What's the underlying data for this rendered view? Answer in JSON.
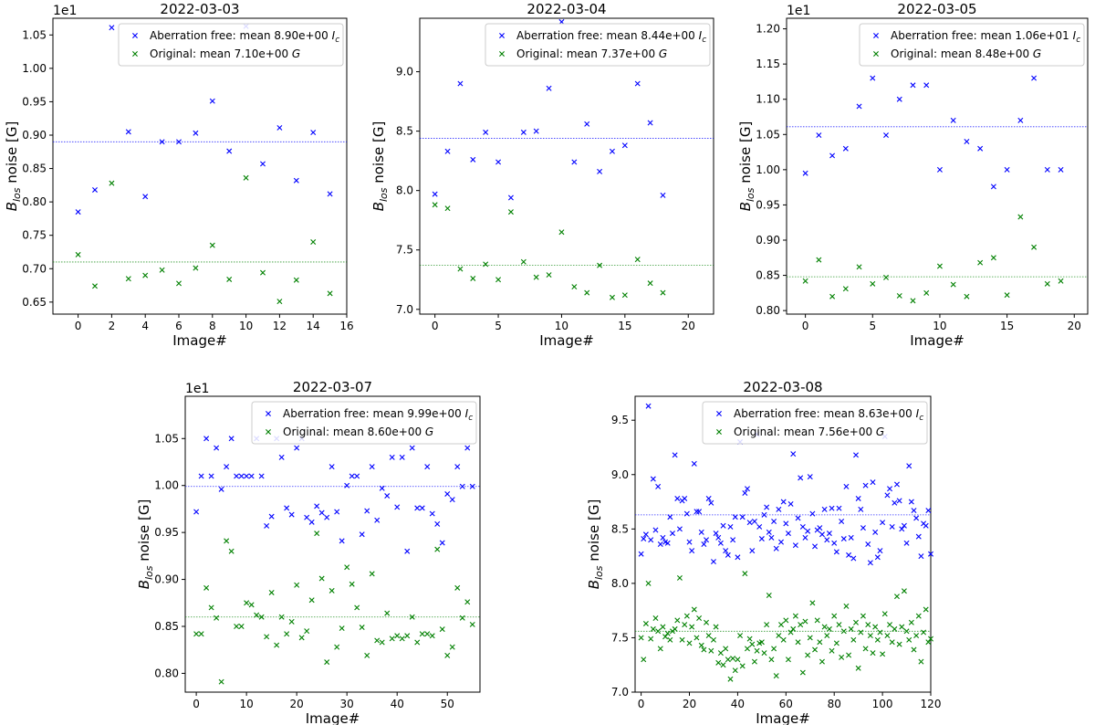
{
  "figure": {
    "charts": [
      {
        "type": "scatter",
        "title": "2022-03-03",
        "xlabel": "Image#",
        "ylabel_main": "B",
        "ylabel_sub": "los",
        "ylabel_rest": " noise [G]",
        "offset_label": "1e1",
        "xlim": [
          -1.5,
          16
        ],
        "ylim": [
          0.632,
          1.075
        ],
        "xticks": [
          0,
          2,
          4,
          6,
          8,
          10,
          12,
          14,
          16
        ],
        "yticks": [
          0.65,
          0.7,
          0.75,
          0.8,
          0.85,
          0.9,
          0.95,
          1.0,
          1.05
        ],
        "ytick_labels": [
          "0.65",
          "0.70",
          "0.75",
          "0.80",
          "0.85",
          "0.90",
          "0.95",
          "1.00",
          "1.05"
        ],
        "legend_position": "top-right",
        "series": [
          {
            "name": "Aberration free: mean 8.90e+00 Ic",
            "legend_text": "Aberration free: mean 8.90e+00",
            "legend_unit": "I",
            "legend_unit_sub": "c",
            "color": "#0000ff",
            "mean": 0.89,
            "y": [
              0.785,
              0.818,
              1.061,
              0.905,
              0.808,
              0.89,
              0.89,
              0.903,
              0.951,
              0.876,
              1.063,
              0.857,
              0.911,
              0.832,
              0.904,
              0.812
            ]
          },
          {
            "name": "Original: mean 7.10e+00 G",
            "legend_text": "Original: mean 7.10e+00",
            "legend_unit": "G",
            "legend_unit_sub": "",
            "color": "#008000",
            "mean": 0.71,
            "y": [
              0.721,
              0.674,
              0.828,
              0.685,
              0.69,
              0.698,
              0.678,
              0.701,
              0.735,
              0.684,
              0.836,
              0.694,
              0.651,
              0.683,
              0.74,
              0.663
            ]
          }
        ]
      },
      {
        "type": "scatter",
        "title": "2022-03-04",
        "xlabel": "Image#",
        "ylabel_main": "B",
        "ylabel_sub": "los",
        "ylabel_rest": " noise [G]",
        "offset_label": "",
        "xlim": [
          -1.2,
          22
        ],
        "ylim": [
          6.96,
          9.45
        ],
        "xticks": [
          0,
          5,
          10,
          15,
          20
        ],
        "yticks": [
          7.0,
          7.5,
          8.0,
          8.5,
          9.0
        ],
        "ytick_labels": [
          "7.0",
          "7.5",
          "8.0",
          "8.5",
          "9.0"
        ],
        "legend_position": "top-right",
        "series": [
          {
            "name": "Aberration free: mean 8.44e+00 Ic",
            "legend_text": "Aberration free: mean 8.44e+00",
            "legend_unit": "I",
            "legend_unit_sub": "c",
            "color": "#0000ff",
            "mean": 8.44,
            "y": [
              7.97,
              8.33,
              8.9,
              8.26,
              8.49,
              8.24,
              7.94,
              8.49,
              8.5,
              8.86,
              9.42,
              8.24,
              8.56,
              8.16,
              8.33,
              8.38,
              8.9,
              8.57,
              7.96
            ]
          },
          {
            "name": "Original: mean 7.37e+00 G",
            "legend_text": "Original: mean 7.37e+00",
            "legend_unit": "G",
            "legend_unit_sub": "",
            "color": "#008000",
            "mean": 7.37,
            "y": [
              7.88,
              7.85,
              7.34,
              7.26,
              7.38,
              7.25,
              7.82,
              7.4,
              7.27,
              7.29,
              7.65,
              7.19,
              7.14,
              7.37,
              7.1,
              7.12,
              7.42,
              7.22,
              7.14
            ]
          }
        ]
      },
      {
        "type": "scatter",
        "title": "2022-03-05",
        "xlabel": "Image#",
        "ylabel_main": "B",
        "ylabel_sub": "los",
        "ylabel_rest": " noise [G]",
        "offset_label": "1e1",
        "xlim": [
          -1.4,
          21
        ],
        "ylim": [
          0.795,
          1.215
        ],
        "xticks": [
          0,
          5,
          10,
          15,
          20
        ],
        "yticks": [
          0.8,
          0.85,
          0.9,
          0.95,
          1.0,
          1.05,
          1.1,
          1.15,
          1.2
        ],
        "ytick_labels": [
          "0.80",
          "0.85",
          "0.90",
          "0.95",
          "1.00",
          "1.05",
          "1.10",
          "1.15",
          "1.20"
        ],
        "legend_position": "top-right",
        "series": [
          {
            "name": "Aberration free: mean 1.06e+01 Ic",
            "legend_text": "Aberration free: mean 1.06e+01",
            "legend_unit": "I",
            "legend_unit_sub": "c",
            "color": "#0000ff",
            "mean": 1.061,
            "y": [
              0.995,
              1.049,
              1.02,
              1.03,
              1.09,
              1.13,
              1.049,
              1.1,
              1.12,
              1.12,
              1.0,
              1.07,
              1.04,
              1.03,
              0.976,
              1.0,
              1.07,
              1.13,
              1.0,
              1.0
            ]
          },
          {
            "name": "Original: mean 8.48e+00 G",
            "legend_text": "Original: mean 8.48e+00",
            "legend_unit": "G",
            "legend_unit_sub": "",
            "color": "#008000",
            "mean": 0.848,
            "y": [
              0.842,
              0.872,
              0.82,
              0.831,
              0.862,
              0.838,
              0.847,
              0.821,
              0.814,
              0.825,
              0.863,
              0.837,
              0.82,
              0.868,
              0.875,
              0.822,
              0.933,
              0.89,
              0.838,
              0.842
            ]
          }
        ]
      },
      {
        "type": "scatter",
        "title": "2022-03-07",
        "xlabel": "Image#",
        "ylabel_main": "B",
        "ylabel_sub": "los",
        "ylabel_rest": " noise [G]",
        "offset_label": "1e1",
        "xlim": [
          -2.2,
          56.5
        ],
        "ylim": [
          0.78,
          1.095
        ],
        "xticks": [
          0,
          10,
          20,
          30,
          40,
          50
        ],
        "yticks": [
          0.8,
          0.85,
          0.9,
          0.95,
          1.0,
          1.05
        ],
        "ytick_labels": [
          "0.80",
          "0.85",
          "0.90",
          "0.95",
          "1.00",
          "1.05"
        ],
        "legend_position": "top-right",
        "series": [
          {
            "name": "Aberration free: mean 9.99e+00 Ic",
            "legend_text": "Aberration free: mean 9.99e+00",
            "legend_unit": "I",
            "legend_unit_sub": "c",
            "color": "#0000ff",
            "mean": 0.999,
            "y": [
              0.972,
              1.01,
              1.05,
              1.01,
              1.04,
              0.996,
              1.02,
              1.05,
              1.01,
              1.01,
              1.01,
              1.01,
              1.05,
              1.01,
              0.957,
              0.967,
              1.05,
              1.03,
              0.976,
              0.969,
              1.04,
              1.05,
              0.966,
              0.961,
              0.978,
              0.971,
              0.966,
              1.02,
              0.972,
              0.941,
              1.0,
              1.01,
              1.01,
              0.948,
              0.973,
              1.02,
              0.963,
              0.997,
              0.989,
              1.03,
              0.977,
              1.03,
              0.93,
              1.04,
              0.976,
              0.976,
              1.02,
              0.97,
              0.959,
              0.939,
              0.991,
              0.985,
              1.02,
              0.999,
              1.04,
              0.999
            ]
          },
          {
            "name": "Original: mean 8.60e+00 G",
            "legend_text": "Original: mean 8.60e+00",
            "legend_unit": "G",
            "legend_unit_sub": "",
            "color": "#008000",
            "mean": 0.86,
            "y": [
              0.842,
              0.842,
              0.891,
              0.87,
              0.859,
              0.791,
              0.941,
              0.93,
              0.85,
              0.85,
              0.875,
              0.873,
              0.862,
              0.86,
              0.839,
              0.886,
              0.83,
              0.86,
              0.842,
              0.855,
              0.894,
              0.838,
              0.845,
              0.878,
              0.949,
              0.901,
              0.812,
              0.888,
              0.828,
              0.848,
              0.913,
              0.895,
              0.87,
              0.849,
              0.819,
              0.906,
              0.835,
              0.833,
              0.864,
              0.837,
              0.84,
              0.837,
              0.84,
              0.86,
              0.833,
              0.842,
              0.842,
              0.84,
              0.932,
              0.847,
              0.819,
              0.828,
              0.891,
              0.859,
              0.876,
              0.852
            ]
          }
        ]
      },
      {
        "type": "scatter",
        "title": "2022-03-08",
        "xlabel": "Image#",
        "ylabel_main": "B",
        "ylabel_sub": "los",
        "ylabel_rest": " noise [G]",
        "offset_label": "",
        "xlim": [
          -2.5,
          120
        ],
        "ylim": [
          7.0,
          9.72
        ],
        "xticks": [
          0,
          20,
          40,
          60,
          80,
          100,
          120
        ],
        "yticks": [
          7.0,
          7.5,
          8.0,
          8.5,
          9.0,
          9.5
        ],
        "ytick_labels": [
          "7.0",
          "7.5",
          "8.0",
          "8.5",
          "9.0",
          "9.5"
        ],
        "legend_position": "top-right",
        "series": [
          {
            "name": "Aberration free: mean 8.63e+00 Ic",
            "legend_text": "Aberration free: mean 8.63e+00",
            "legend_unit": "I",
            "legend_unit_sub": "c",
            "color": "#0000ff",
            "mean": 8.63,
            "y": [
              8.27,
              8.41,
              8.45,
              9.63,
              8.4,
              8.96,
              8.49,
              8.89,
              8.36,
              8.42,
              8.38,
              8.37,
              8.61,
              8.46,
              9.18,
              8.78,
              8.5,
              8.76,
              8.78,
              8.64,
              8.38,
              8.3,
              9.1,
              8.66,
              8.66,
              8.47,
              8.36,
              8.4,
              8.78,
              8.74,
              8.2,
              8.46,
              8.42,
              8.37,
              8.53,
              8.3,
              8.26,
              8.52,
              8.4,
              8.61,
              8.24,
              9.3,
              8.61,
              8.83,
              8.87,
              8.56,
              8.3,
              8.57,
              9.37,
              8.52,
              8.41,
              8.63,
              8.7,
              8.47,
              8.42,
              8.57,
              8.32,
              8.68,
              8.38,
              8.75,
              8.55,
              8.46,
              8.73,
              9.19,
              8.35,
              8.6,
              8.97,
              8.52,
              8.42,
              8.48,
              8.98,
              8.64,
              8.34,
              8.49,
              8.51,
              8.45,
              8.68,
              8.4,
              8.46,
              8.69,
              8.37,
              8.29,
              8.69,
              8.57,
              8.41,
              8.89,
              8.26,
              8.42,
              8.23,
              9.18,
              8.78,
              8.68,
              8.51,
              8.9,
              8.36,
              8.19,
              8.93,
              8.47,
              8.24,
              8.3,
              8.56,
              9.35,
              8.81,
              8.87,
              8.52,
              8.74,
              8.91,
              8.76,
              8.5,
              8.53,
              8.37,
              9.08,
              8.75,
              8.67,
              8.6,
              8.43,
              8.25,
              8.55,
              8.53,
              8.67,
              8.27
            ]
          },
          {
            "name": "Original: mean 7.56e+00 G",
            "legend_text": "Original: mean 7.56e+00",
            "legend_unit": "G",
            "legend_unit_sub": "",
            "color": "#008000",
            "mean": 7.56,
            "y": [
              7.5,
              7.3,
              7.63,
              8.0,
              7.49,
              7.58,
              7.68,
              7.56,
              7.4,
              7.6,
              7.51,
              7.54,
              7.48,
              7.56,
              7.58,
              7.66,
              8.05,
              7.48,
              7.62,
              7.7,
              7.45,
              7.6,
              7.76,
              7.5,
              7.68,
              7.43,
              7.39,
              7.64,
              7.52,
              7.38,
              7.48,
              7.6,
              7.27,
              7.36,
              7.25,
              7.4,
              7.3,
              7.12,
              7.31,
              7.2,
              7.3,
              7.52,
              7.24,
              8.09,
              7.4,
              7.49,
              7.44,
              7.28,
              7.38,
              7.45,
              7.46,
              7.36,
              7.62,
              7.89,
              7.3,
              7.4,
              7.15,
              7.52,
              7.62,
              7.48,
              7.66,
              7.3,
              7.55,
              7.58,
              7.7,
              7.46,
              7.62,
              7.18,
              7.65,
              7.34,
              7.5,
              7.82,
              7.39,
              7.66,
              7.46,
              7.28,
              7.6,
              7.52,
              7.58,
              7.38,
              7.7,
              7.45,
              7.62,
              7.32,
              7.56,
              7.79,
              7.34,
              7.58,
              7.48,
              7.64,
              7.22,
              7.55,
              7.7,
              7.4,
              7.62,
              7.52,
              7.36,
              7.6,
              7.48,
              7.55,
              7.35,
              7.72,
              7.52,
              7.62,
              7.46,
              7.58,
              7.88,
              7.44,
              7.6,
              7.93,
              7.56,
              7.48,
              7.64,
              7.39,
              7.52,
              7.7,
              7.28,
              7.55,
              7.76,
              7.46,
              7.49
            ]
          }
        ]
      }
    ]
  }
}
